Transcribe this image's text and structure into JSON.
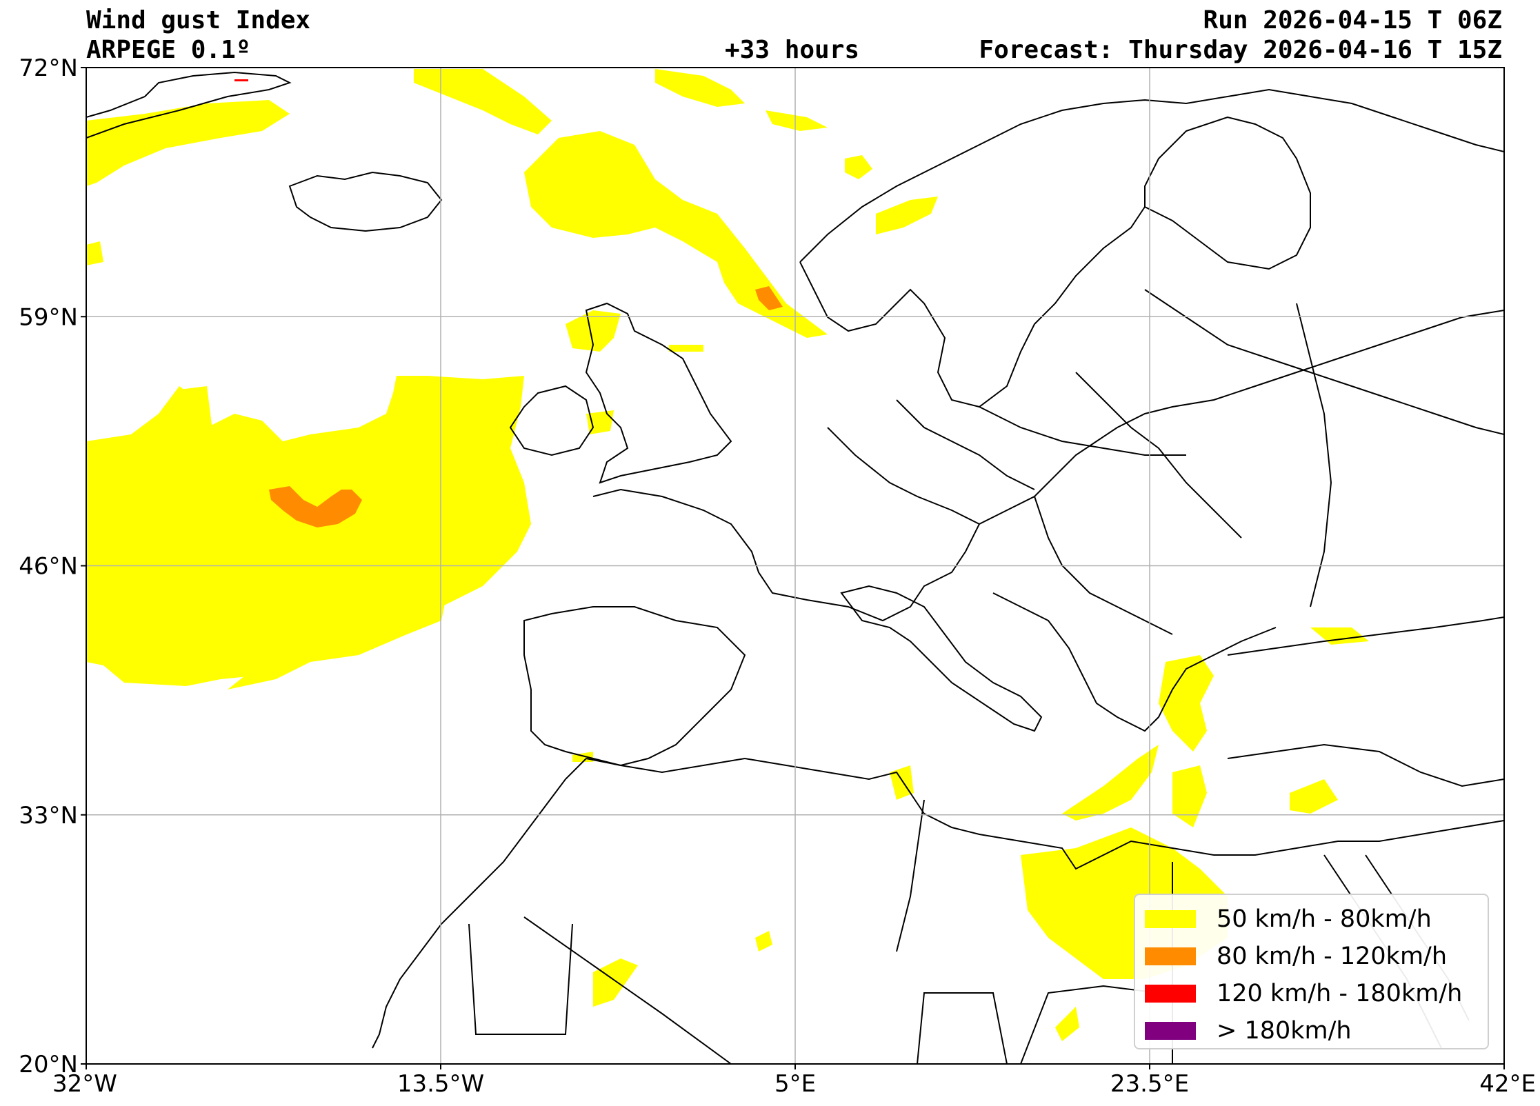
{
  "header": {
    "title": "Wind gust Index",
    "model": "ARPEGE 0.1º",
    "lead_time": "+33 hours",
    "run": "Run 2026-04-15 T 06Z",
    "forecast": "Forecast: Thursday 2026-04-16 T 15Z"
  },
  "axes": {
    "lat_ticks": [
      "72°N",
      "59°N",
      "46°N",
      "33°N",
      "20°N"
    ],
    "lon_ticks": [
      "32°W",
      "13.5°W",
      "5°E",
      "23.5°E",
      "42°E"
    ],
    "lat_range": [
      20,
      72
    ],
    "lon_range": [
      -32,
      42
    ],
    "grid": true
  },
  "legend": {
    "placement": "bottom-right",
    "items": [
      {
        "label": "50 km/h - 80km/h",
        "color": "#ffff00"
      },
      {
        "label": "80 km/h - 120km/h",
        "color": "#ff8c00"
      },
      {
        "label": "120 km/h - 180km/h",
        "color": "#ff0000"
      },
      {
        "label": "> 180km/h",
        "color": "#800080"
      }
    ]
  }
}
